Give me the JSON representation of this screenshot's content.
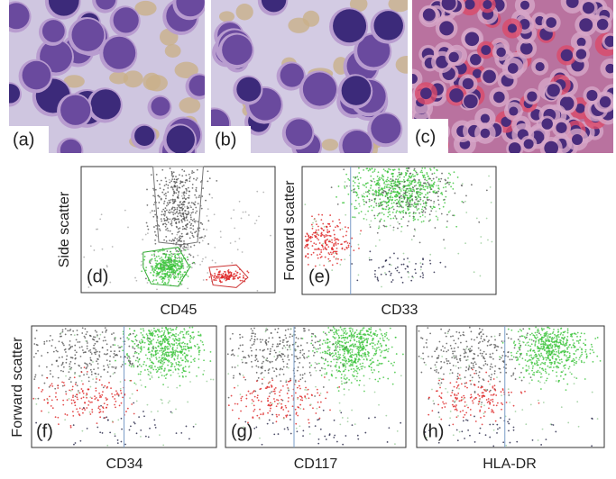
{
  "panels": [
    {
      "label": "(a)"
    },
    {
      "label": "(b)"
    },
    {
      "label": "(c)"
    },
    {
      "label": "(d)",
      "x_label": "CD45",
      "y_label": "Side scatter"
    },
    {
      "label": "(e)",
      "x_label": "CD33",
      "y_label": "Forward scatter"
    },
    {
      "label": "(f)",
      "x_label": "CD34",
      "y_label": "Forward scatter"
    },
    {
      "label": "(g)",
      "x_label": "CD117"
    },
    {
      "label": "(h)",
      "x_label": "HLA-DR"
    }
  ]
}
